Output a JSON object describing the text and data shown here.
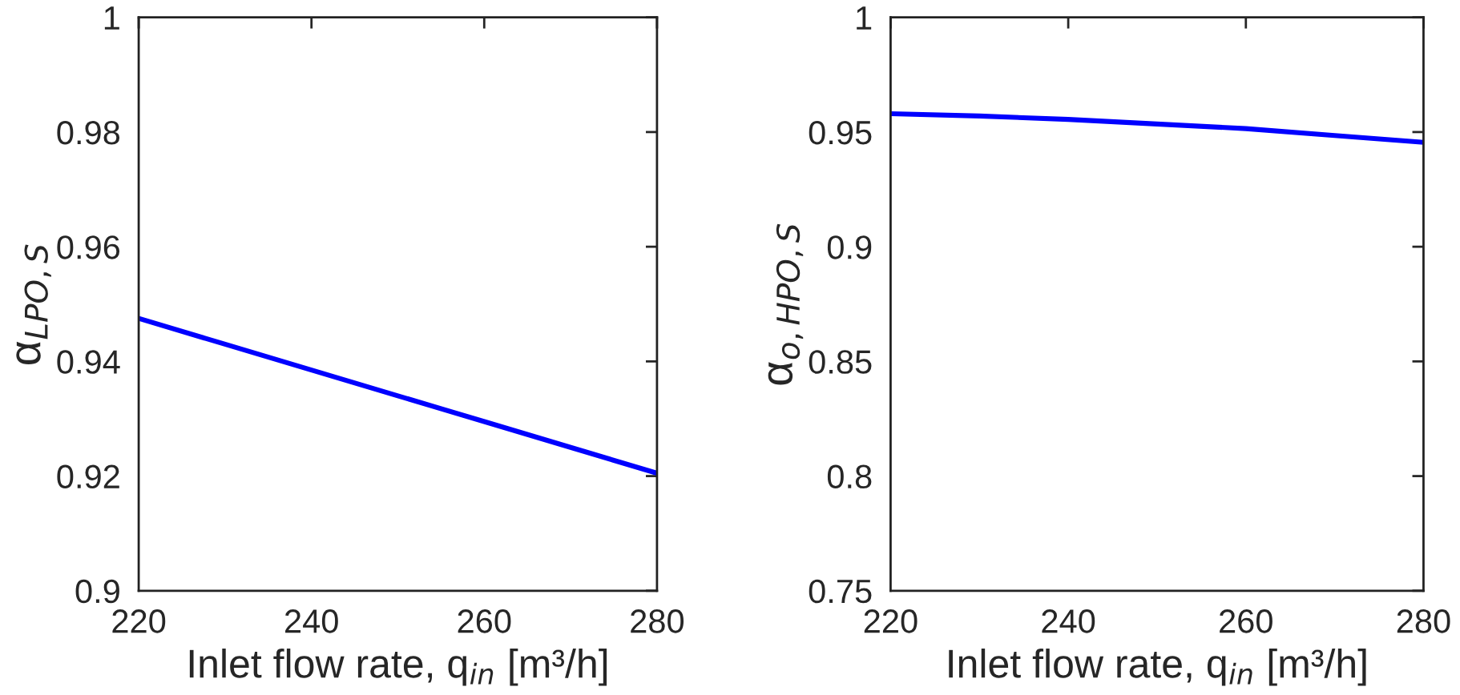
{
  "chart_data": [
    {
      "type": "line",
      "xlabel": "Inlet flow rate, q$_{in}$ [m³/h]",
      "ylabel": "α$_{LPO,S}$",
      "x": [
        220,
        230,
        240,
        250,
        260,
        270,
        280
      ],
      "series": [
        {
          "color": "#0000ff",
          "values": [
            0.9475,
            0.943,
            0.9385,
            0.934,
            0.9295,
            0.925,
            0.9205
          ]
        }
      ],
      "xlim": [
        220,
        280
      ],
      "xticks": [
        220,
        240,
        260,
        280
      ],
      "ylim": [
        0.9,
        1
      ],
      "yticks": [
        {
          "value": 0.9,
          "label": "0.9"
        },
        0.92,
        0.94,
        0.96,
        0.98,
        {
          "value": 1,
          "label": "1"
        }
      ],
      "grid": false,
      "legend": false
    },
    {
      "type": "line",
      "xlabel": "Inlet flow rate, q$_{in}$ [m³/h]",
      "ylabel": "α$_{o,HPO,S}$",
      "x": [
        220,
        230,
        240,
        250,
        260,
        270,
        280
      ],
      "series": [
        {
          "color": "#0000ff",
          "values": [
            0.958,
            0.957,
            0.9555,
            0.9535,
            0.9515,
            0.9485,
            0.9455
          ]
        }
      ],
      "xlim": [
        220,
        280
      ],
      "xticks": [
        220,
        240,
        260,
        280
      ],
      "ylim": [
        0.75,
        1
      ],
      "yticks": [
        0.75,
        {
          "value": 0.8,
          "label": "0.8"
        },
        0.85,
        {
          "value": 0.9,
          "label": "0.9"
        },
        0.95,
        {
          "value": 1,
          "label": "1"
        }
      ],
      "grid": false,
      "legend": false
    }
  ]
}
